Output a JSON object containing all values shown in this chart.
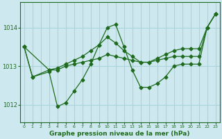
{
  "bg_color": "#cde8ee",
  "grid_color": "#aad4db",
  "line_color": "#1e6b1e",
  "xlabel": "Graphe pression niveau de la mer (hPa)",
  "xlim": [
    -0.5,
    23.5
  ],
  "ylim": [
    1011.55,
    1014.65
  ],
  "yticks": [
    1012,
    1013,
    1014
  ],
  "xticks": [
    0,
    1,
    2,
    3,
    4,
    5,
    6,
    7,
    8,
    9,
    10,
    11,
    12,
    13,
    14,
    15,
    16,
    17,
    18,
    19,
    20,
    21,
    22,
    23
  ],
  "line1_x": [
    0,
    1,
    3,
    4,
    5,
    6,
    7,
    8,
    9,
    10,
    11,
    12,
    13,
    14,
    15,
    16,
    17,
    18,
    19,
    20,
    21,
    22,
    23
  ],
  "line1_y": [
    1013.5,
    1012.72,
    1012.85,
    1011.95,
    1012.05,
    1012.35,
    1012.65,
    1013.05,
    1013.55,
    1014.0,
    1014.08,
    1013.5,
    1012.9,
    1012.45,
    1012.45,
    1012.55,
    1012.72,
    1013.0,
    1013.05,
    1013.05,
    1013.05,
    1014.0,
    1014.35
  ],
  "line2_x": [
    0,
    1,
    3,
    4,
    5,
    6,
    7,
    8,
    9,
    10,
    11,
    12,
    13,
    14,
    15,
    16,
    17,
    18,
    19,
    20,
    21,
    22,
    23
  ],
  "line2_y": [
    1013.5,
    1012.72,
    1012.9,
    1012.9,
    1013.0,
    1013.05,
    1013.1,
    1013.15,
    1013.2,
    1013.3,
    1013.25,
    1013.2,
    1013.15,
    1013.1,
    1013.1,
    1013.15,
    1013.2,
    1013.25,
    1013.25,
    1013.25,
    1013.25,
    1014.0,
    1014.35
  ],
  "line3_x": [
    0,
    3,
    4,
    5,
    6,
    7,
    8,
    9,
    10,
    11,
    12,
    13,
    14,
    15,
    16,
    17,
    18,
    19,
    20,
    21,
    22,
    23
  ],
  "line3_y": [
    1013.5,
    1012.9,
    1012.95,
    1013.05,
    1013.15,
    1013.25,
    1013.4,
    1013.55,
    1013.75,
    1013.6,
    1013.4,
    1013.25,
    1013.1,
    1013.1,
    1013.2,
    1013.3,
    1013.4,
    1013.45,
    1013.45,
    1013.45,
    1014.0,
    1014.35
  ]
}
